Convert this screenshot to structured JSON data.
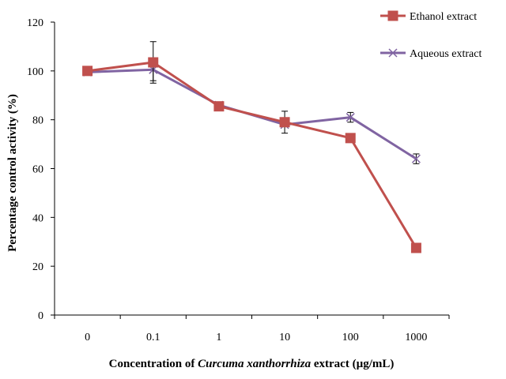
{
  "chart_data": {
    "type": "line",
    "categories": [
      "0",
      "0.1",
      "1",
      "10",
      "100",
      "1000"
    ],
    "ylim": [
      0,
      120
    ],
    "yticks": [
      0,
      20,
      40,
      60,
      80,
      100,
      120
    ],
    "ylabel": "Percentage control activity (%)",
    "xlabel": {
      "prefix": "Concentration of ",
      "italic": "Curcuma xanthorrhiza",
      "suffix": " extract (µg/mL)"
    },
    "grid": false,
    "legend_position": "top-right",
    "series": [
      {
        "name": "Ethanol extract",
        "color": "#c0504d",
        "marker": "square",
        "values": [
          100,
          103.5,
          85.5,
          79,
          72.5,
          27.5
        ],
        "errors": [
          0,
          8.5,
          0,
          4.5,
          0,
          0
        ]
      },
      {
        "name": "Aqueous extract",
        "color": "#8064a2",
        "marker": "x",
        "values": [
          99.5,
          100.5,
          86,
          78,
          81,
          64
        ],
        "errors": [
          0,
          4.5,
          0,
          0,
          2,
          2
        ]
      }
    ]
  }
}
